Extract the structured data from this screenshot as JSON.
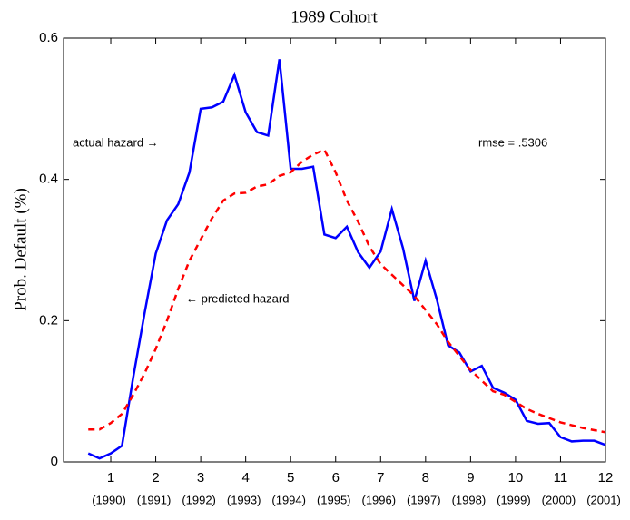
{
  "chart_data": {
    "type": "line",
    "title": "1989 Cohort",
    "ylabel": "Prob. Default (%)",
    "x": [
      0.5,
      0.75,
      1,
      1.25,
      1.5,
      1.75,
      2,
      2.25,
      2.5,
      2.75,
      3,
      3.25,
      3.5,
      3.75,
      4,
      4.25,
      4.5,
      4.75,
      5,
      5.25,
      5.5,
      5.75,
      6,
      6.25,
      6.5,
      6.75,
      7,
      7.25,
      7.5,
      7.75,
      8,
      8.25,
      8.5,
      8.75,
      9,
      9.25,
      9.5,
      9.75,
      10,
      10.25,
      10.5,
      10.75,
      11,
      11.25,
      11.5,
      11.75,
      12
    ],
    "series": [
      {
        "name": "actual hazard",
        "color": "#0000ff",
        "dash": false,
        "values": [
          0.012,
          0.005,
          0.012,
          0.023,
          0.12,
          0.21,
          0.295,
          0.342,
          0.365,
          0.41,
          0.5,
          0.502,
          0.51,
          0.548,
          0.495,
          0.467,
          0.462,
          0.57,
          0.415,
          0.415,
          0.418,
          0.322,
          0.317,
          0.333,
          0.297,
          0.275,
          0.298,
          0.358,
          0.302,
          0.228,
          0.285,
          0.23,
          0.165,
          0.155,
          0.128,
          0.136,
          0.105,
          0.098,
          0.088,
          0.058,
          0.054,
          0.055,
          0.035,
          0.029,
          0.03,
          0.03,
          0.024
        ]
      },
      {
        "name": "predicted hazard",
        "color": "#ff0000",
        "dash": true,
        "values": [
          0.046,
          0.046,
          0.055,
          0.068,
          0.095,
          0.125,
          0.16,
          0.2,
          0.245,
          0.285,
          0.315,
          0.345,
          0.37,
          0.38,
          0.381,
          0.39,
          0.393,
          0.405,
          0.41,
          0.425,
          0.435,
          0.442,
          0.41,
          0.37,
          0.34,
          0.305,
          0.28,
          0.265,
          0.25,
          0.235,
          0.215,
          0.195,
          0.17,
          0.15,
          0.13,
          0.115,
          0.1,
          0.095,
          0.085,
          0.075,
          0.068,
          0.062,
          0.056,
          0.052,
          0.048,
          0.045,
          0.042
        ]
      }
    ],
    "xlim": [
      -0.05,
      12
    ],
    "ylim": [
      0,
      0.6
    ],
    "xticks": [
      1,
      2,
      3,
      4,
      5,
      6,
      7,
      8,
      9,
      10,
      11,
      12
    ],
    "year_labels": [
      "(1990)",
      "(1991)",
      "(1992)",
      "(1993)",
      "(1994)",
      "(1995)",
      "(1996)",
      "(1997)",
      "(1998)",
      "(1999)",
      "(2000)",
      "(2001)"
    ],
    "yticks": [
      0,
      0.2,
      0.4,
      0.6
    ],
    "annotations": [
      "actual hazard →",
      "← predicted hazard",
      "rmse = .5306"
    ]
  }
}
